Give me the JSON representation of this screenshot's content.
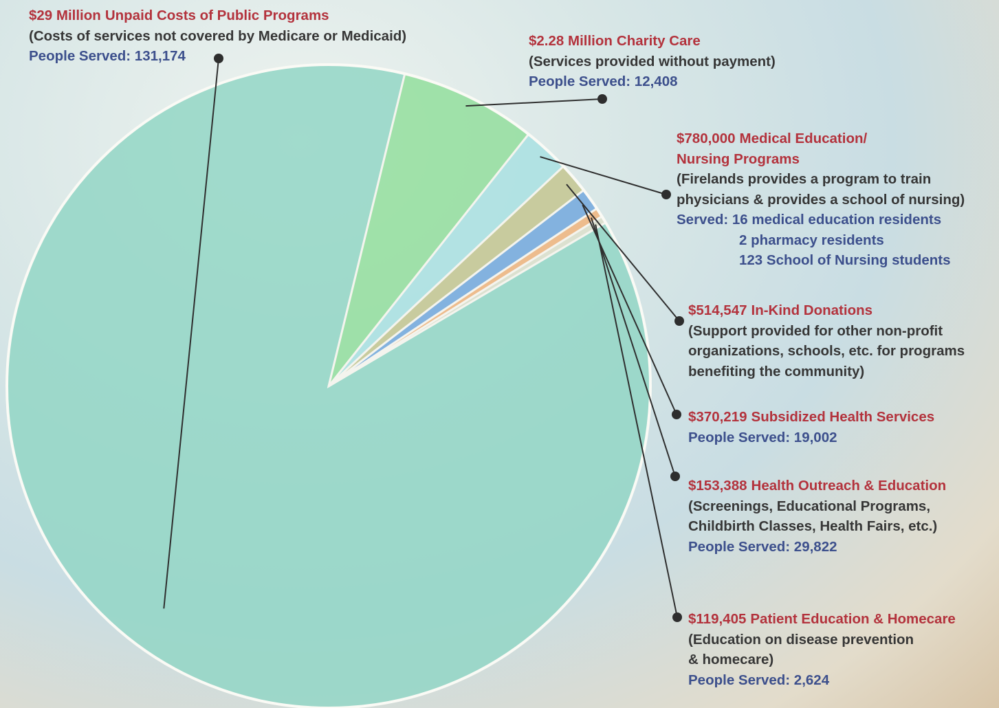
{
  "chart_data": {
    "type": "pie",
    "categories": [
      "Unpaid Costs of Public Programs",
      "Charity Care",
      "Medical Education/ Nursing Programs",
      "In-Kind Donations",
      "Subsidized Health Services",
      "Health Outreach & Education",
      "Patient Education & Homecare"
    ],
    "values": [
      29000000,
      2280000,
      780000,
      514547,
      370219,
      153388,
      119405
    ],
    "value_labels": [
      "$29 Million",
      "$2.28 Million",
      "$780,000",
      "$514,547",
      "$370,219",
      "$153,388",
      "$119,405"
    ],
    "colors": [
      "#93d6c6",
      "#93de9e",
      "#a9e0e2",
      "#c4c690",
      "#73a8dd",
      "#f0b47c",
      "#dcdfcb"
    ],
    "descriptions": [
      [
        "(Costs of services not covered by Medicare or Medicaid)"
      ],
      [
        "(Services provided without payment)"
      ],
      [
        "(Firelands provides a program to train",
        "physicians & provides a school of nursing)"
      ],
      [
        "(Support provided for other non-profit",
        "organizations, schools, etc. for programs",
        "benefiting the community)"
      ],
      [],
      [
        "(Screenings, Educational Programs,",
        "Childbirth Classes, Health Fairs, etc.)"
      ],
      [
        "(Education on disease prevention",
        "& homecare)"
      ]
    ],
    "served": [
      [
        "People Served: 131,174"
      ],
      [
        "People Served: 12,408"
      ],
      [
        "Served: 16 medical education residents",
        "2 pharmacy residents",
        "123 School of Nursing students"
      ],
      [],
      [
        "People Served: 19,002"
      ],
      [
        "People Served: 29,822"
      ],
      [
        "People Served: 2,624"
      ]
    ]
  }
}
